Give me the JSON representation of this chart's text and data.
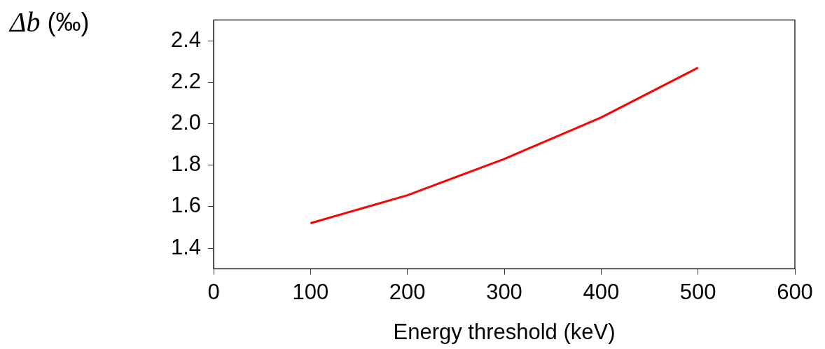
{
  "chart_data": {
    "type": "line",
    "xlabel": "Energy threshold (keV)",
    "ylabel": "Δb (‰)",
    "x": [
      100,
      200,
      300,
      400,
      500
    ],
    "series": [
      {
        "color": "#ff0000",
        "values": [
          1.52,
          1.655,
          1.83,
          2.03,
          2.27
        ]
      }
    ],
    "xlim": [
      0,
      600
    ],
    "xticks": [
      0,
      100,
      200,
      300,
      400,
      500,
      600
    ],
    "ylim": [
      1.3,
      2.5
    ],
    "yticks": [
      {
        "value": 1.4,
        "label": "1.4"
      },
      {
        "value": 1.6,
        "label": "1.6"
      },
      {
        "value": 1.8,
        "label": "1.8"
      },
      {
        "value": 2.0,
        "label": "2.0"
      },
      {
        "value": 2.2,
        "label": "2.2"
      },
      {
        "value": 2.4,
        "label": "2.4"
      }
    ],
    "grid": false,
    "legend": false,
    "marker": "none",
    "line_style": "solid"
  }
}
